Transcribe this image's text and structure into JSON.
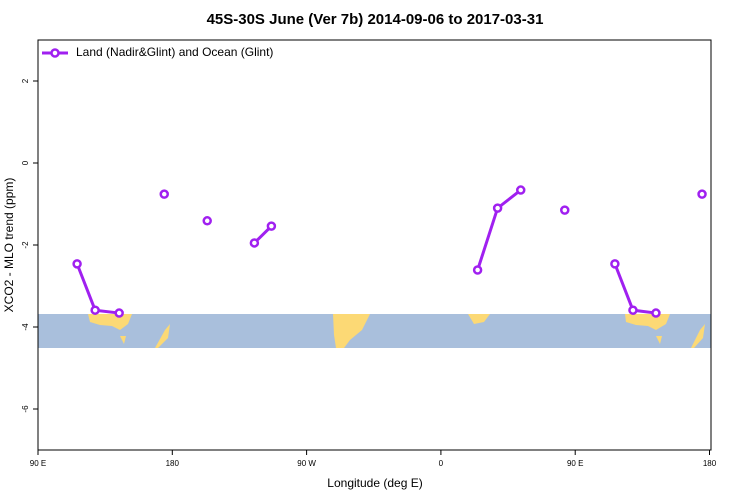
{
  "chart_data": {
    "type": "line",
    "title": "45S-30S June (Ver 7b)   2014-09-06 to 2017-03-31",
    "x_label": "Longitude (deg E)",
    "y_label": "XCO2 - MLO trend (ppm)",
    "x": [
      116.2,
      128.3,
      144.4,
      null,
      174.6,
      null,
      203.4,
      null,
      235,
      246.4,
      null,
      384.6,
      398,
      413.5,
      null,
      443,
      null,
      476.6,
      488.7,
      504.1,
      null,
      535
    ],
    "series": [
      {
        "name": "Land (Nadir&Glint) and Ocean (Glint)",
        "color": "#a020f0",
        "values": [
          -2.46,
          -3.59,
          -3.66,
          null,
          -0.76,
          null,
          -1.41,
          null,
          -1.95,
          -1.54,
          null,
          -2.61,
          -1.1,
          -0.66,
          null,
          -1.15,
          null,
          -2.46,
          -3.59,
          -3.66,
          null,
          -0.76
        ]
      }
    ],
    "xlim": [
      90,
      541
    ],
    "xticks": [
      {
        "value": 90,
        "label": "90 E"
      },
      180,
      {
        "value": 270,
        "label": "90 W"
      },
      {
        "value": 360,
        "label": "0"
      },
      {
        "value": 450,
        "label": "90 E"
      },
      {
        "value": 540,
        "label": "180"
      }
    ],
    "ylim": [
      -7,
      3
    ],
    "yticks": [
      -6,
      -4,
      -2,
      0,
      2
    ],
    "legend": "top-left"
  }
}
